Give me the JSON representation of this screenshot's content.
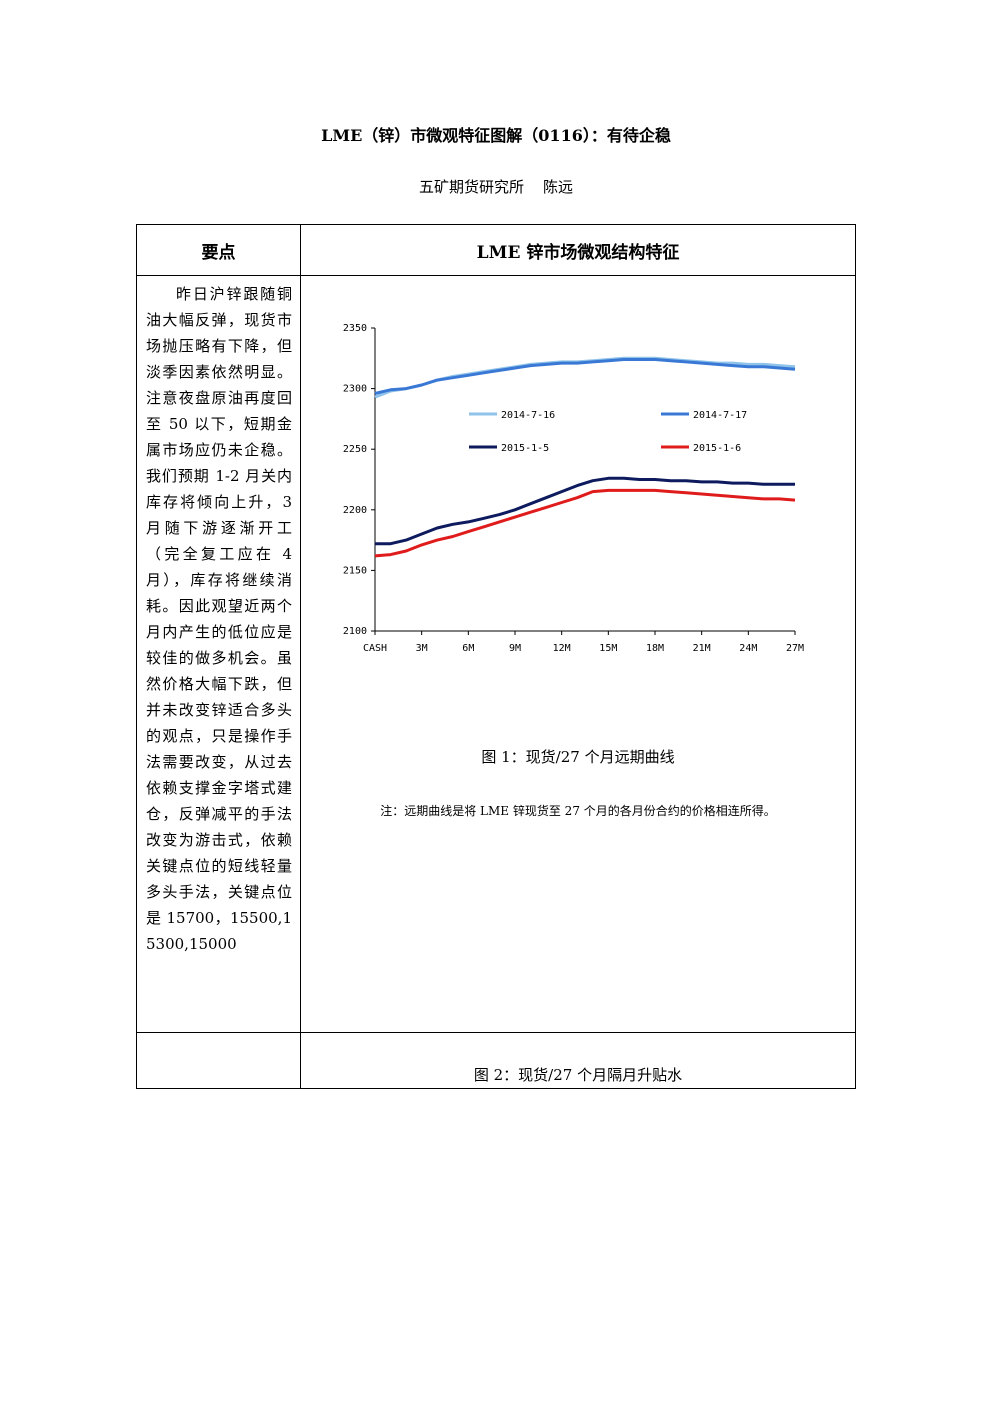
{
  "document": {
    "title": "LME（锌）市微观特征图解（0116）：有待企稳",
    "author": "五矿期货研究所    陈远"
  },
  "table": {
    "header_left": "要点",
    "header_right": "LME 锌市场微观结构特征",
    "summary_text": "昨日沪锌跟随铜油大幅反弹，现货市场抛压略有下降，但淡季因素依然明显。注意夜盘原油再度回至 50 以下，短期金属市场应仍未企稳。我们预期 1-2 月关内库存将倾向上升，3 月随下游逐渐开工（完全复工应在 4 月），库存将继续消耗。因此观望近两个月内产生的低位应是较佳的做多机会。虽然价格大幅下跌，但并未改变锌适合多头的观点，只是操作手法需要改变，从过去依赖支撑金字塔式建仓，反弹减平的手法改变为游击式，依赖关键点位的短线轻量多头手法，关键点位是 15700，15500,15300,15000",
    "figure1_caption": "图 1：现货/27 个月远期曲线",
    "figure1_note": "注：远期曲线是将 LME 锌现货至 27 个月的各月份合约的价格相连所得。",
    "figure2_caption": "图 2：现货/27 个月隔月升贴水"
  },
  "chart_data": {
    "type": "line",
    "title": "",
    "xlabel": "",
    "ylabel": "",
    "x_tick_labels": [
      "CASH",
      "3M",
      "6M",
      "9M",
      "12M",
      "15M",
      "18M",
      "21M",
      "24M",
      "27M"
    ],
    "x": [
      0,
      1,
      2,
      3,
      4,
      5,
      6,
      7,
      8,
      9,
      10,
      11,
      12,
      13,
      14,
      15,
      16,
      17,
      18,
      19,
      20,
      21,
      22,
      23,
      24,
      25,
      26,
      27
    ],
    "ylim": [
      2100,
      2350
    ],
    "yticks": [
      2100,
      2150,
      2200,
      2250,
      2300,
      2350
    ],
    "grid": false,
    "legend_position": "inside-middle",
    "series": [
      {
        "name": "2014-7-16",
        "color": "#8fc3ea",
        "values": [
          2293,
          2298,
          2300,
          2303,
          2307,
          2310,
          2312,
          2314,
          2316,
          2318,
          2320,
          2321,
          2322,
          2322,
          2323,
          2324,
          2325,
          2325,
          2325,
          2324,
          2323,
          2322,
          2321,
          2321,
          2320,
          2320,
          2319,
          2318
        ]
      },
      {
        "name": "2014-7-17",
        "color": "#3a78d6",
        "values": [
          2296,
          2299,
          2300,
          2303,
          2307,
          2309,
          2311,
          2313,
          2315,
          2317,
          2319,
          2320,
          2321,
          2321,
          2322,
          2323,
          2324,
          2324,
          2324,
          2323,
          2322,
          2321,
          2320,
          2319,
          2318,
          2318,
          2317,
          2316
        ]
      },
      {
        "name": "2015-1-5",
        "color": "#0d1a5e",
        "values": [
          2172,
          2172,
          2175,
          2180,
          2185,
          2188,
          2190,
          2193,
          2196,
          2200,
          2205,
          2210,
          2215,
          2220,
          2224,
          2226,
          2226,
          2225,
          2225,
          2224,
          2224,
          2223,
          2223,
          2222,
          2222,
          2221,
          2221,
          2221
        ]
      },
      {
        "name": "2015-1-6",
        "color": "#e01b1b",
        "values": [
          2162,
          2163,
          2166,
          2171,
          2175,
          2178,
          2182,
          2186,
          2190,
          2194,
          2198,
          2202,
          2206,
          2210,
          2215,
          2216,
          2216,
          2216,
          2216,
          2215,
          2214,
          2213,
          2212,
          2211,
          2210,
          2209,
          2209,
          2208
        ]
      }
    ]
  }
}
